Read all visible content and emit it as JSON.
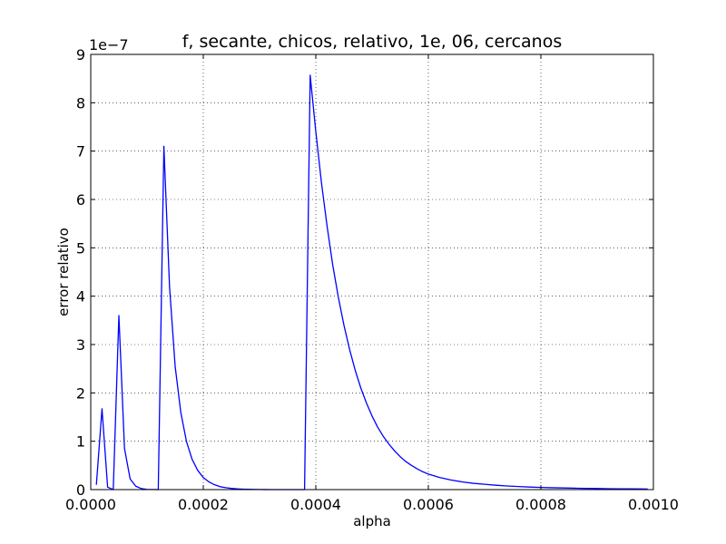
{
  "chart_data": {
    "type": "line",
    "title": "f, secante, chicos, relativo, 1e, 06, cercanos",
    "xlabel": "alpha",
    "ylabel": "error relativo",
    "y_offset_label": "1e−7",
    "xlim": [
      0.0,
      0.001
    ],
    "ylim": [
      0,
      9
    ],
    "x_ticks": [
      0.0,
      0.0002,
      0.0004,
      0.0006,
      0.0008,
      0.001
    ],
    "x_tick_labels": [
      "0.0000",
      "0.0002",
      "0.0004",
      "0.0006",
      "0.0008",
      "0.0010"
    ],
    "y_ticks": [
      0,
      1,
      2,
      3,
      4,
      5,
      6,
      7,
      8,
      9
    ],
    "y_tick_labels": [
      "0",
      "1",
      "2",
      "3",
      "4",
      "5",
      "6",
      "7",
      "8",
      "9"
    ],
    "grid": true,
    "line_color": "#0000ff",
    "series": [
      {
        "x": [
          1e-05,
          2e-05,
          3e-05,
          4e-05,
          5e-05,
          6e-05,
          7e-05,
          8e-05,
          9e-05,
          0.0001,
          0.00011,
          0.00012,
          0.00013,
          0.00014,
          0.00015,
          0.00016,
          0.00017,
          0.00018,
          0.00019,
          0.0002,
          0.00021,
          0.00022,
          0.00023,
          0.00024,
          0.00025,
          0.00026,
          0.00027,
          0.00028,
          0.00029,
          0.0003,
          0.00031,
          0.00032,
          0.00033,
          0.00034,
          0.00035,
          0.00036,
          0.00037,
          0.00038,
          0.00039,
          0.0004,
          0.00041,
          0.00042,
          0.00043,
          0.00044,
          0.00045,
          0.00046,
          0.00047,
          0.00048,
          0.00049,
          0.0005,
          0.00051,
          0.00052,
          0.00053,
          0.00054,
          0.00055,
          0.00056,
          0.00057,
          0.00058,
          0.00059,
          0.0006,
          0.00062,
          0.00064,
          0.00066,
          0.00068,
          0.0007,
          0.00072,
          0.00074,
          0.00076,
          0.00078,
          0.0008,
          0.00082,
          0.00084,
          0.00086,
          0.00088,
          0.0009,
          0.00092,
          0.00094,
          0.00096,
          0.00098,
          0.00099
        ],
        "y": [
          0.1,
          1.67,
          0.05,
          0.0,
          3.6,
          0.85,
          0.22,
          0.07,
          0.02,
          0.005,
          0.002,
          0.0,
          7.1,
          4.2,
          2.55,
          1.6,
          1.0,
          0.63,
          0.4,
          0.25,
          0.16,
          0.1,
          0.06,
          0.04,
          0.025,
          0.015,
          0.01,
          0.006,
          0.004,
          0.002,
          0.001,
          0.0005,
          0.0003,
          0.0002,
          0.0001,
          0.0001,
          0.0,
          0.0,
          8.57,
          7.4,
          6.35,
          5.45,
          4.65,
          3.98,
          3.4,
          2.9,
          2.47,
          2.1,
          1.79,
          1.52,
          1.29,
          1.1,
          0.94,
          0.8,
          0.68,
          0.58,
          0.5,
          0.43,
          0.37,
          0.32,
          0.25,
          0.2,
          0.16,
          0.13,
          0.11,
          0.09,
          0.075,
          0.063,
          0.053,
          0.045,
          0.039,
          0.034,
          0.029,
          0.025,
          0.022,
          0.019,
          0.017,
          0.015,
          0.013,
          0.012
        ]
      }
    ]
  }
}
